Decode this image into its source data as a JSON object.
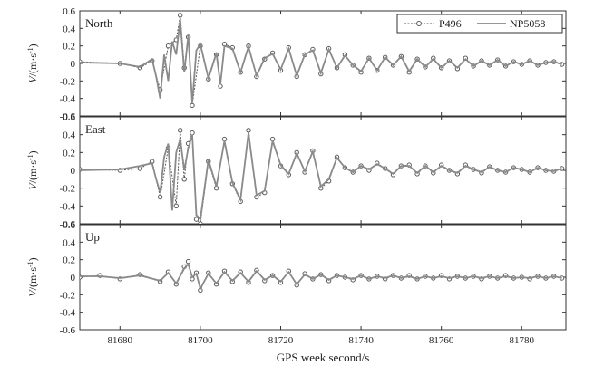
{
  "chart_data": {
    "type": "line",
    "xlabel": "GPS week second/s",
    "xlim": [
      81670,
      81791
    ],
    "xticks": [
      81680,
      81700,
      81720,
      81740,
      81760,
      81780
    ],
    "ylim": [
      -0.6,
      0.6
    ],
    "yticks": [
      0.6,
      0.4,
      0.2,
      0,
      -0.2,
      -0.4,
      -0.6
    ],
    "ytick_labels": [
      "0.6",
      "0.4",
      "0.2",
      "0",
      "-0.2",
      "-0.4",
      "-0.6"
    ],
    "ylabel_prefix": "V",
    "ylabel_unit": "/(m·s",
    "ylabel_exp": "-1",
    "ylabel_close": ")",
    "legend": {
      "placement": "top-right",
      "entries": [
        "P496",
        "NP5058"
      ]
    },
    "colors": {
      "p496": "#5a5a5a",
      "np5058": "#8a8a8a",
      "axes": "#333333"
    },
    "panels": [
      {
        "label": "North",
        "series": [
          {
            "name": "P496",
            "x": [
              81670,
              81680,
              81685,
              81688,
              81690,
              81692,
              81694,
              81695,
              81696,
              81697,
              81698,
              81700,
              81702,
              81704,
              81705,
              81706,
              81708,
              81710,
              81712,
              81714,
              81716,
              81718,
              81720,
              81722,
              81724,
              81726,
              81728,
              81730,
              81732,
              81734,
              81736,
              81738,
              81740,
              81742,
              81744,
              81746,
              81748,
              81750,
              81752,
              81754,
              81756,
              81758,
              81760,
              81762,
              81764,
              81766,
              81768,
              81770,
              81772,
              81774,
              81776,
              81778,
              81780,
              81782,
              81784,
              81786,
              81788,
              81790
            ],
            "y": [
              0.02,
              0.0,
              -0.05,
              0.03,
              -0.3,
              0.2,
              0.27,
              0.55,
              -0.05,
              0.3,
              -0.48,
              0.2,
              -0.18,
              0.1,
              -0.26,
              0.22,
              0.18,
              -0.1,
              0.2,
              -0.15,
              0.05,
              0.12,
              -0.08,
              0.18,
              -0.15,
              0.1,
              0.16,
              -0.12,
              0.17,
              -0.05,
              0.1,
              -0.02,
              -0.1,
              0.06,
              -0.08,
              0.07,
              -0.02,
              0.08,
              -0.1,
              0.05,
              -0.04,
              0.06,
              -0.05,
              0.03,
              -0.06,
              0.06,
              -0.03,
              0.03,
              -0.02,
              0.04,
              -0.03,
              0.02,
              -0.01,
              0.03,
              -0.02,
              0.01,
              0.02,
              -0.01
            ]
          },
          {
            "name": "NP5058",
            "x": [
              81670,
              81680,
              81685,
              81688,
              81689,
              81690,
              81691,
              81692,
              81693,
              81694,
              81695,
              81696,
              81697,
              81698,
              81699,
              81700,
              81702,
              81704,
              81705,
              81706,
              81708,
              81710,
              81712,
              81714,
              81716,
              81718,
              81720,
              81722,
              81724,
              81726,
              81728,
              81730,
              81732,
              81734,
              81736,
              81738,
              81740,
              81742,
              81744,
              81746,
              81748,
              81750,
              81752,
              81754,
              81756,
              81758,
              81760,
              81762,
              81764,
              81766,
              81768,
              81770,
              81772,
              81774,
              81776,
              81778,
              81780,
              81782,
              81784,
              81786,
              81788,
              81790
            ],
            "y": [
              0.01,
              0.0,
              -0.04,
              0.05,
              -0.15,
              -0.4,
              0.1,
              -0.2,
              0.25,
              0.1,
              0.5,
              -0.1,
              0.32,
              -0.45,
              0.15,
              0.22,
              -0.17,
              0.12,
              -0.24,
              0.2,
              0.17,
              -0.1,
              0.19,
              -0.14,
              0.06,
              0.11,
              -0.07,
              0.17,
              -0.14,
              0.1,
              0.15,
              -0.11,
              0.16,
              -0.05,
              0.09,
              -0.02,
              -0.09,
              0.06,
              -0.08,
              0.07,
              -0.02,
              0.08,
              -0.09,
              0.05,
              -0.04,
              0.05,
              -0.05,
              0.03,
              -0.05,
              0.05,
              -0.03,
              0.03,
              -0.02,
              0.04,
              -0.03,
              0.02,
              -0.01,
              0.03,
              -0.02,
              0.01,
              0.02,
              -0.01
            ]
          }
        ]
      },
      {
        "label": "East",
        "series": [
          {
            "name": "P496",
            "x": [
              81670,
              81680,
              81685,
              81688,
              81690,
              81692,
              81694,
              81695,
              81696,
              81697,
              81698,
              81699,
              81700,
              81702,
              81704,
              81706,
              81708,
              81710,
              81712,
              81714,
              81716,
              81718,
              81720,
              81722,
              81724,
              81726,
              81728,
              81730,
              81732,
              81734,
              81736,
              81738,
              81740,
              81742,
              81744,
              81746,
              81748,
              81750,
              81752,
              81754,
              81756,
              81758,
              81760,
              81762,
              81764,
              81766,
              81768,
              81770,
              81772,
              81774,
              81776,
              81778,
              81780,
              81782,
              81784,
              81786,
              81788,
              81790
            ],
            "y": [
              0.01,
              0.0,
              0.02,
              0.1,
              -0.3,
              0.25,
              -0.4,
              0.45,
              -0.1,
              0.3,
              0.42,
              -0.55,
              -0.6,
              0.1,
              -0.2,
              0.35,
              -0.15,
              -0.35,
              0.45,
              -0.3,
              -0.25,
              0.35,
              0.05,
              -0.05,
              0.2,
              -0.02,
              0.22,
              -0.2,
              -0.12,
              0.15,
              0.03,
              -0.02,
              0.05,
              0.0,
              0.08,
              0.02,
              -0.05,
              0.05,
              0.06,
              -0.04,
              0.05,
              -0.03,
              0.06,
              0.0,
              -0.04,
              0.06,
              0.01,
              -0.03,
              0.04,
              0.0,
              -0.02,
              0.03,
              0.01,
              -0.02,
              0.03,
              0.0,
              -0.01,
              0.02
            ]
          },
          {
            "name": "NP5058",
            "x": [
              81670,
              81680,
              81685,
              81688,
              81689,
              81690,
              81691,
              81692,
              81693,
              81694,
              81695,
              81696,
              81697,
              81698,
              81699,
              81700,
              81702,
              81704,
              81706,
              81708,
              81710,
              81712,
              81714,
              81716,
              81718,
              81720,
              81722,
              81724,
              81726,
              81728,
              81730,
              81732,
              81734,
              81736,
              81738,
              81740,
              81742,
              81744,
              81746,
              81748,
              81750,
              81752,
              81754,
              81756,
              81758,
              81760,
              81762,
              81764,
              81766,
              81768,
              81770,
              81772,
              81774,
              81776,
              81778,
              81780,
              81782,
              81784,
              81786,
              81788,
              81790
            ],
            "y": [
              0.0,
              0.01,
              0.05,
              0.08,
              -0.1,
              -0.25,
              0.15,
              0.3,
              -0.45,
              0.2,
              0.35,
              0.0,
              0.25,
              0.4,
              -0.5,
              -0.55,
              0.12,
              -0.18,
              0.33,
              -0.14,
              -0.33,
              0.42,
              -0.28,
              -0.23,
              0.33,
              0.06,
              -0.04,
              0.19,
              -0.01,
              0.21,
              -0.18,
              -0.1,
              0.14,
              0.03,
              -0.02,
              0.05,
              0.01,
              0.07,
              0.02,
              -0.04,
              0.05,
              0.05,
              -0.03,
              0.05,
              -0.02,
              0.05,
              0.0,
              -0.03,
              0.05,
              0.01,
              -0.02,
              0.04,
              0.0,
              -0.02,
              0.03,
              0.01,
              -0.02,
              0.03,
              0.0,
              -0.01,
              0.02
            ]
          }
        ]
      },
      {
        "label": "Up",
        "series": [
          {
            "name": "P496",
            "x": [
              81670,
              81675,
              81680,
              81685,
              81690,
              81692,
              81694,
              81696,
              81697,
              81698,
              81699,
              81700,
              81702,
              81704,
              81706,
              81708,
              81710,
              81712,
              81714,
              81716,
              81718,
              81720,
              81722,
              81724,
              81726,
              81728,
              81730,
              81732,
              81734,
              81736,
              81738,
              81740,
              81742,
              81744,
              81746,
              81748,
              81750,
              81752,
              81754,
              81756,
              81758,
              81760,
              81762,
              81764,
              81766,
              81768,
              81770,
              81772,
              81774,
              81776,
              81778,
              81780,
              81782,
              81784,
              81786,
              81788,
              81790
            ],
            "y": [
              0.0,
              0.02,
              -0.02,
              0.03,
              -0.05,
              0.06,
              -0.08,
              0.12,
              0.18,
              -0.02,
              0.05,
              -0.15,
              0.05,
              -0.08,
              0.07,
              -0.05,
              0.06,
              -0.06,
              0.08,
              -0.04,
              0.02,
              -0.06,
              0.07,
              -0.09,
              0.04,
              -0.02,
              0.03,
              -0.04,
              0.02,
              0.0,
              -0.03,
              0.02,
              -0.02,
              0.01,
              -0.02,
              0.02,
              -0.01,
              0.02,
              -0.02,
              0.01,
              -0.01,
              0.02,
              -0.02,
              0.01,
              -0.01,
              0.01,
              -0.02,
              0.01,
              -0.01,
              0.02,
              -0.01,
              0.0,
              -0.02,
              0.01,
              -0.01,
              0.01,
              -0.01
            ]
          },
          {
            "name": "NP5058",
            "x": [
              81670,
              81675,
              81680,
              81685,
              81690,
              81692,
              81694,
              81696,
              81697,
              81698,
              81699,
              81700,
              81702,
              81704,
              81706,
              81708,
              81710,
              81712,
              81714,
              81716,
              81718,
              81720,
              81722,
              81724,
              81726,
              81728,
              81730,
              81732,
              81734,
              81736,
              81738,
              81740,
              81742,
              81744,
              81746,
              81748,
              81750,
              81752,
              81754,
              81756,
              81758,
              81760,
              81762,
              81764,
              81766,
              81768,
              81770,
              81772,
              81774,
              81776,
              81778,
              81780,
              81782,
              81784,
              81786,
              81788,
              81790
            ],
            "y": [
              0.01,
              0.01,
              -0.01,
              0.02,
              -0.04,
              0.05,
              -0.07,
              0.1,
              0.15,
              0.0,
              0.04,
              -0.13,
              0.04,
              -0.07,
              0.06,
              -0.04,
              0.05,
              -0.05,
              0.07,
              -0.03,
              0.02,
              -0.05,
              0.06,
              -0.08,
              0.03,
              -0.02,
              0.03,
              -0.03,
              0.02,
              0.0,
              -0.02,
              0.02,
              -0.02,
              0.01,
              -0.01,
              0.02,
              -0.01,
              0.01,
              -0.02,
              0.01,
              -0.01,
              0.01,
              -0.01,
              0.01,
              -0.01,
              0.01,
              -0.01,
              0.01,
              -0.01,
              0.01,
              -0.01,
              0.0,
              -0.01,
              0.01,
              -0.01,
              0.01,
              -0.01
            ]
          }
        ]
      }
    ]
  }
}
